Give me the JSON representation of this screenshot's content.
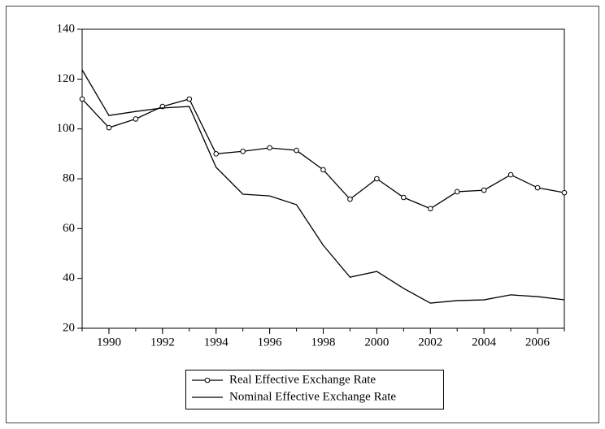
{
  "chart_data": {
    "type": "line",
    "x": [
      1989,
      1990,
      1991,
      1992,
      1993,
      1994,
      1995,
      1996,
      1997,
      1998,
      1999,
      2000,
      2001,
      2002,
      2003,
      2004,
      2005,
      2006,
      2007
    ],
    "series": [
      {
        "name": "Real Effective Exchange Rate",
        "color": "#000000",
        "marker": "circle",
        "values": [
          112,
          100.5,
          104,
          109,
          112,
          90,
          91,
          92.4,
          91.4,
          83.6,
          71.8,
          80,
          72.5,
          68,
          74.8,
          75.4,
          81.6,
          76.4,
          74.4
        ]
      },
      {
        "name": "Nominal Effective Exchange Rate",
        "color": "#000000",
        "marker": "none",
        "values": [
          123.7,
          105.4,
          107,
          108.4,
          109,
          84.6,
          73.8,
          73.1,
          69.6,
          53.3,
          40.5,
          42.8,
          36,
          30.1,
          31.1,
          31.4,
          33.4,
          32.7,
          31.4
        ]
      }
    ],
    "xlim": [
      1989,
      2007
    ],
    "xticks": [
      1990,
      1992,
      1994,
      1996,
      1998,
      2000,
      2002,
      2004,
      2006
    ],
    "ylim": [
      20,
      140
    ],
    "yticks": [
      20,
      40,
      60,
      80,
      100,
      120,
      140
    ],
    "grid": false,
    "legend": "bottom"
  }
}
